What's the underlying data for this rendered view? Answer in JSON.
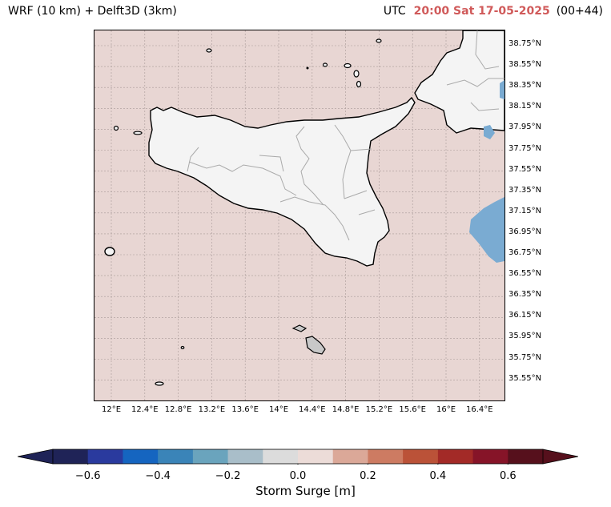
{
  "title": {
    "model": "WRF (10 km) + Delft3D (3km)",
    "tz": "UTC",
    "datetime": "20:00 Sat 17-05-2025",
    "lead": "(00+44)",
    "datetime_color": "#d05a5a"
  },
  "map": {
    "sea_color": "#e8d6d3",
    "land_color": "#f4f4f4",
    "lat_labels": [
      "38.75°N",
      "38.55°N",
      "38.35°N",
      "38.15°N",
      "37.95°N",
      "37.75°N",
      "37.55°N",
      "37.35°N",
      "37.15°N",
      "36.95°N",
      "36.75°N",
      "36.55°N",
      "36.35°N",
      "36.15°N",
      "35.95°N",
      "35.75°N",
      "35.55°N"
    ],
    "lon_labels": [
      "12°E",
      "12.4°E",
      "12.8°E",
      "13.2°E",
      "13.6°E",
      "14°E",
      "14.4°E",
      "14.8°E",
      "15.2°E",
      "15.6°E",
      "16°E",
      "16.4°E"
    ]
  },
  "colorbar": {
    "label": "Storm Surge [m]",
    "ticks": [
      "−0.6",
      "−0.4",
      "−0.2",
      "0.0",
      "0.2",
      "0.4",
      "0.6"
    ],
    "colors": [
      "#1f2357",
      "#2a3a9e",
      "#1565c0",
      "#3a84b8",
      "#6aa4bd",
      "#a9bec9",
      "#dcdcdc",
      "#ecdcd8",
      "#dba898",
      "#cd7b62",
      "#bb5238",
      "#a32a27",
      "#861428",
      "#56101c"
    ]
  }
}
